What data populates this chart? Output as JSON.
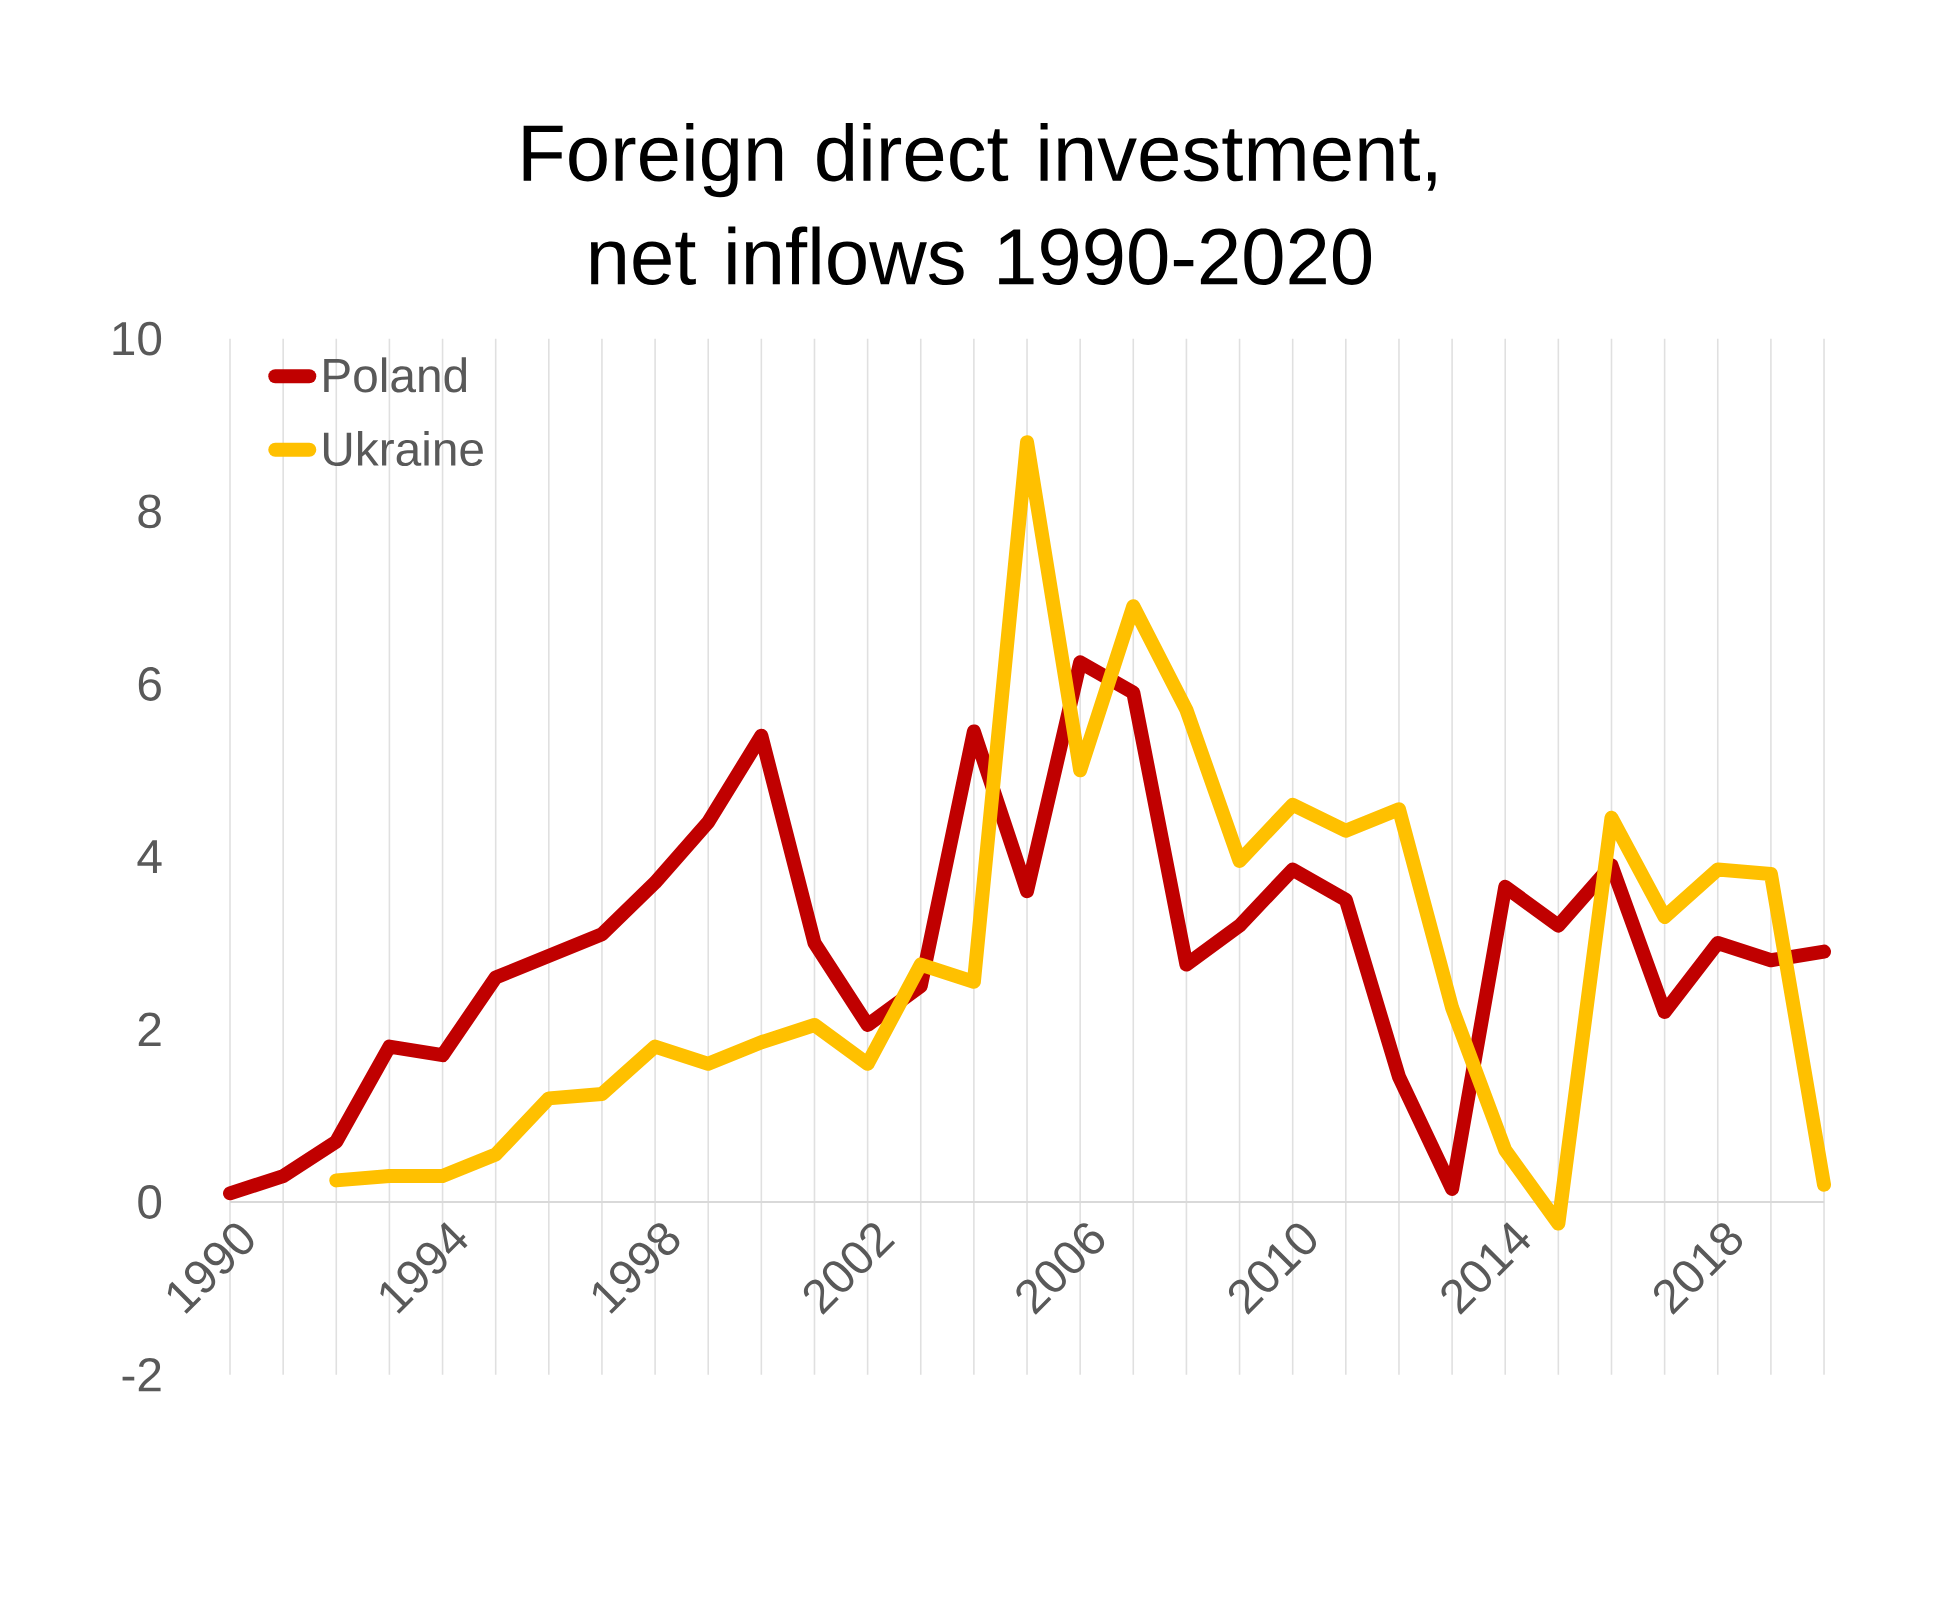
{
  "chart_data": {
    "type": "line",
    "title": "Foreign direct investment, net inflows 1990-2020",
    "x": [
      1990,
      1991,
      1992,
      1993,
      1994,
      1995,
      1996,
      1997,
      1998,
      1999,
      2000,
      2001,
      2002,
      2003,
      2004,
      2005,
      2006,
      2007,
      2008,
      2009,
      2010,
      2011,
      2012,
      2013,
      2014,
      2015,
      2016,
      2017,
      2018,
      2019,
      2020
    ],
    "series": [
      {
        "name": "Poland",
        "color": "#c00000",
        "values": [
          0.1,
          0.3,
          0.7,
          1.8,
          1.7,
          2.6,
          2.85,
          3.1,
          3.7,
          4.4,
          5.4,
          3.0,
          2.05,
          2.5,
          5.45,
          3.6,
          6.25,
          5.9,
          2.75,
          3.2,
          3.85,
          3.5,
          1.45,
          0.15,
          3.65,
          3.2,
          3.9,
          2.2,
          3.0,
          2.8,
          2.9
        ]
      },
      {
        "name": "Ukraine",
        "color": "#ffc000",
        "values": [
          null,
          null,
          0.25,
          0.3,
          0.3,
          0.55,
          1.2,
          1.25,
          1.8,
          1.6,
          1.85,
          2.05,
          1.6,
          2.75,
          2.55,
          8.8,
          5.0,
          6.9,
          5.7,
          3.95,
          4.6,
          4.3,
          4.55,
          2.25,
          0.6,
          -0.25,
          4.45,
          3.3,
          3.85,
          3.8,
          0.2
        ]
      }
    ],
    "xlim": [
      1990,
      2020
    ],
    "xticks": [
      1990,
      {
        "value": 1991,
        "label": null
      },
      {
        "value": 1992,
        "label": null
      },
      {
        "value": 1993,
        "label": null
      },
      1994,
      {
        "value": 1995,
        "label": null
      },
      {
        "value": 1996,
        "label": null
      },
      {
        "value": 1997,
        "label": null
      },
      1998,
      {
        "value": 1999,
        "label": null
      },
      {
        "value": 2000,
        "label": null
      },
      {
        "value": 2001,
        "label": null
      },
      2002,
      {
        "value": 2003,
        "label": null
      },
      {
        "value": 2004,
        "label": null
      },
      {
        "value": 2005,
        "label": null
      },
      2006,
      {
        "value": 2007,
        "label": null
      },
      {
        "value": 2008,
        "label": null
      },
      {
        "value": 2009,
        "label": null
      },
      2010,
      {
        "value": 2011,
        "label": null
      },
      {
        "value": 2012,
        "label": null
      },
      {
        "value": 2013,
        "label": null
      },
      2014,
      {
        "value": 2015,
        "label": null
      },
      {
        "value": 2016,
        "label": null
      },
      {
        "value": 2017,
        "label": null
      },
      2018,
      {
        "value": 2019,
        "label": null
      },
      {
        "value": 2020,
        "label": null
      }
    ],
    "ylim": [
      -2,
      10
    ],
    "yticks": [
      -2,
      0,
      2,
      4,
      6,
      8,
      10
    ],
    "grid": "x",
    "legend": "top left",
    "line_style": "solid"
  }
}
